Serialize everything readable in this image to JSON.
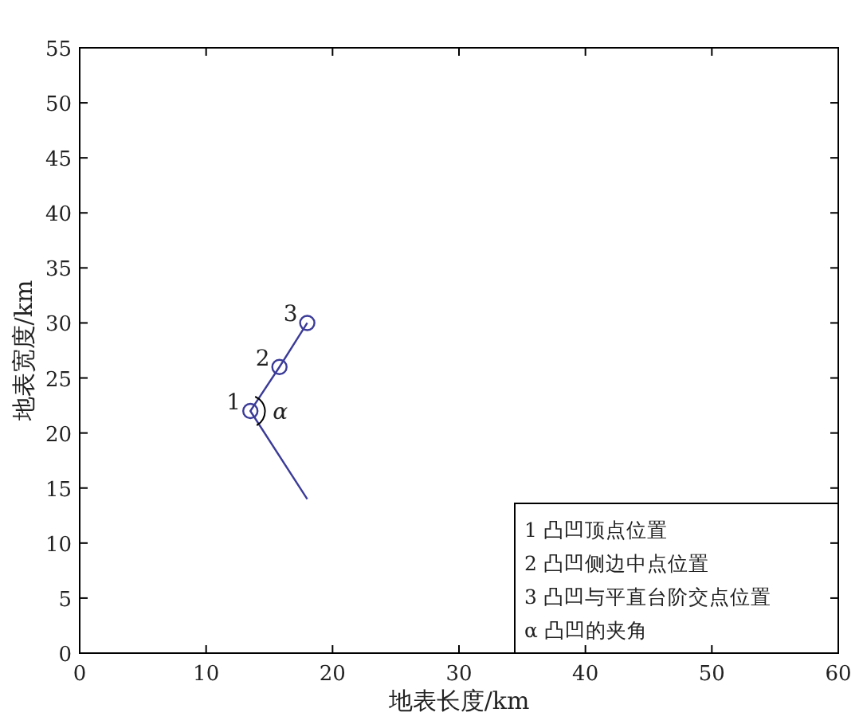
{
  "chart_data": {
    "type": "line",
    "xlabel": "地表长度/km",
    "ylabel": "地表宽度/km",
    "xlim": [
      0,
      60
    ],
    "xticks": [
      0,
      10,
      20,
      30,
      40,
      50,
      60
    ],
    "ylim": [
      0,
      55
    ],
    "yticks": [
      0,
      5,
      10,
      15,
      20,
      25,
      30,
      35,
      40,
      45,
      50,
      55
    ],
    "grid": false,
    "series": [
      {
        "type": "line",
        "x": [
          18,
          13.5,
          15.8,
          18
        ],
        "values": [
          14,
          22,
          26,
          30
        ],
        "color": "#3b3b99",
        "marker": "none"
      },
      {
        "type": "scatter",
        "x": [
          13.5,
          15.8,
          18
        ],
        "values": [
          22,
          26,
          30
        ],
        "color": "#3b3b99",
        "marker": "circle"
      }
    ],
    "annotations": [
      {
        "text": "1",
        "x": 13.5,
        "y": 22
      },
      {
        "text": "2",
        "x": 15.8,
        "y": 26
      },
      {
        "text": "3",
        "x": 18,
        "y": 30
      },
      {
        "text": "α",
        "x": 13.5,
        "y": 22
      },
      "1 凸凹顶点位置",
      "2 凸凹侧边中点位置",
      "3 凸凹与平直台阶交点位置",
      "α 凸凹的夹角"
    ]
  }
}
